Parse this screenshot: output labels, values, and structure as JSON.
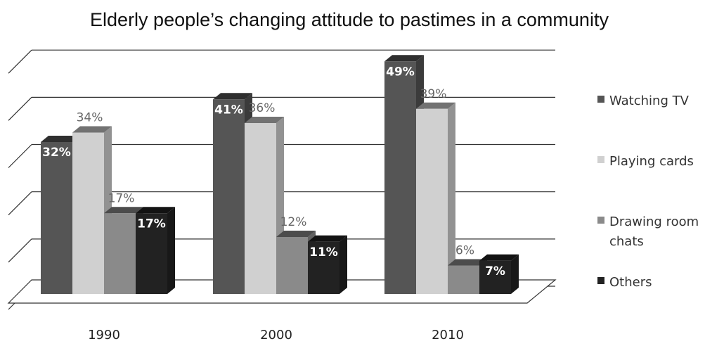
{
  "chart_data": {
    "type": "bar",
    "title": "Elderly people’s changing attitude to pastimes in a community",
    "xlabel": "",
    "ylabel": "",
    "categories": [
      "1990",
      "2000",
      "2010"
    ],
    "ylim": [
      0,
      50
    ],
    "grid": true,
    "legend_position": "right",
    "three_d": true,
    "series": [
      {
        "name": "Watching TV",
        "values": [
          32,
          41,
          49
        ],
        "labels": [
          "32%",
          "41%",
          "49%"
        ],
        "color": "#555555",
        "label_style": "bold-white"
      },
      {
        "name": "Playing cards",
        "values": [
          34,
          36,
          39
        ],
        "labels": [
          "34%",
          "36%",
          "39%"
        ],
        "color": "#d0d0d0",
        "label_style": "plain-gray"
      },
      {
        "name": "Drawing room chats",
        "values": [
          17,
          12,
          6
        ],
        "labels": [
          "17%",
          "12%",
          "6%"
        ],
        "color": "#8a8a8a",
        "label_style": "plain-gray",
        "legend_lines": [
          "Drawing room",
          "chats"
        ]
      },
      {
        "name": "Others",
        "values": [
          17,
          11,
          7
        ],
        "labels": [
          "17%",
          "11%",
          "7%"
        ],
        "color": "#222222",
        "label_style": "bold-white"
      }
    ]
  }
}
